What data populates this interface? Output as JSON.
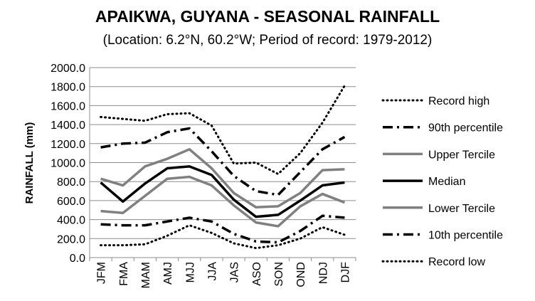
{
  "chart_data": {
    "type": "line",
    "title": "APAIKWA, GUYANA - SEASONAL RAINFALL",
    "subtitle": "(Location: 6.2°N, 60.2°W; Period of record: 1979-2012)",
    "xlabel": "",
    "ylabel": "RAINFALL (mm)",
    "ylim": [
      0,
      2000
    ],
    "ytick_step": 200,
    "ytick_labels": [
      "0.0",
      "200.0",
      "400.0",
      "600.0",
      "800.0",
      "1000.0",
      "1200.0",
      "1400.0",
      "1600.0",
      "1800.0",
      "2000.0"
    ],
    "grid": true,
    "legend_position": "right",
    "categories": [
      "JFM",
      "FMA",
      "MAM",
      "AMJ",
      "MJJ",
      "JJA",
      "JAS",
      "ASO",
      "SON",
      "OND",
      "NDJ",
      "DJF"
    ],
    "series": [
      {
        "name": "Record high",
        "color": "#000000",
        "style": "dotted",
        "values": [
          1480,
          1460,
          1440,
          1510,
          1520,
          1390,
          990,
          1000,
          880,
          1100,
          1420,
          1810
        ]
      },
      {
        "name": "90th percentile",
        "color": "#000000",
        "style": "dashdot",
        "values": [
          1160,
          1200,
          1210,
          1320,
          1360,
          1120,
          860,
          700,
          660,
          900,
          1140,
          1270
        ]
      },
      {
        "name": "Upper Tercile",
        "color": "#808080",
        "style": "solid",
        "values": [
          830,
          760,
          960,
          1040,
          1140,
          940,
          680,
          530,
          540,
          680,
          920,
          930
        ]
      },
      {
        "name": "Median",
        "color": "#000000",
        "style": "solid",
        "values": [
          790,
          590,
          780,
          940,
          960,
          870,
          610,
          430,
          450,
          600,
          760,
          790
        ]
      },
      {
        "name": "Lower Tercile",
        "color": "#808080",
        "style": "solid",
        "values": [
          490,
          470,
          650,
          830,
          850,
          760,
          550,
          370,
          330,
          540,
          670,
          580
        ]
      },
      {
        "name": "10th percentile",
        "color": "#000000",
        "style": "dashdot",
        "values": [
          350,
          340,
          340,
          380,
          420,
          380,
          250,
          170,
          160,
          280,
          440,
          420
        ]
      },
      {
        "name": "Record low",
        "color": "#000000",
        "style": "dotted",
        "values": [
          130,
          130,
          140,
          230,
          340,
          260,
          150,
          100,
          130,
          200,
          320,
          240
        ]
      }
    ]
  }
}
